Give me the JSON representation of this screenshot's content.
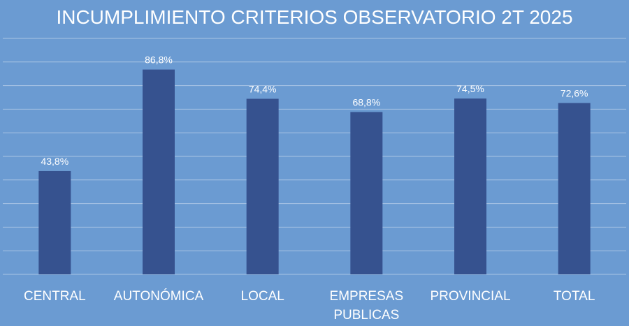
{
  "chart_data": {
    "type": "bar",
    "title": "INCUMPLIMIENTO CRITERIOS OBSERVATORIO 2T 2025",
    "categories": [
      "CENTRAL",
      "AUTONÓMICA",
      "LOCAL",
      "EMPRESAS PUBLICAS",
      "PROVINCIAL",
      "TOTAL"
    ],
    "category_lines": [
      [
        "CENTRAL"
      ],
      [
        "AUTONÓMICA"
      ],
      [
        "LOCAL"
      ],
      [
        "EMPRESAS",
        "PUBLICAS"
      ],
      [
        "PROVINCIAL"
      ],
      [
        "TOTAL"
      ]
    ],
    "values": [
      43.8,
      86.8,
      74.4,
      68.8,
      74.5,
      72.6
    ],
    "value_labels": [
      "43,8%",
      "86,8%",
      "74,4%",
      "68,8%",
      "74,5%",
      "72,6%"
    ],
    "ylim": [
      0,
      100
    ],
    "grid": true,
    "legend": "none",
    "colors": {
      "background": "#6b9bd2",
      "bar": "#36528f",
      "grid": "#a9c4e4",
      "text": "#ffffff"
    }
  }
}
